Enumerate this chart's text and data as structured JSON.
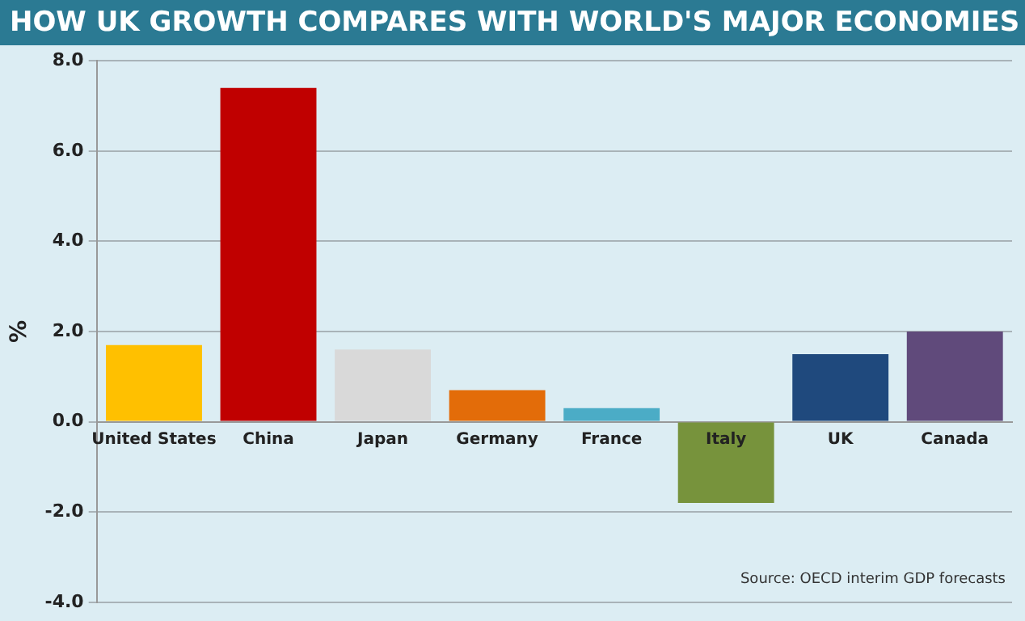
{
  "chart_data": {
    "type": "bar",
    "title": "HOW UK GROWTH COMPARES WITH WORLD'S MAJOR ECONOMIES",
    "ylabel": "%",
    "categories": [
      "United States",
      "China",
      "Japan",
      "Germany",
      "France",
      "Italy",
      "UK",
      "Canada"
    ],
    "values": [
      1.7,
      7.4,
      1.6,
      0.7,
      0.3,
      -1.8,
      1.5,
      2.0
    ],
    "colors": [
      "#ffc000",
      "#c00000",
      "#d9d9d9",
      "#e36c09",
      "#4bacc6",
      "#77933c",
      "#1f497d",
      "#604a7b"
    ],
    "ylim": [
      -4,
      8
    ],
    "yticks": [
      {
        "value": -4,
        "label": "-4.0"
      },
      {
        "value": -2,
        "label": "-2.0"
      },
      {
        "value": 0,
        "label": "0.0"
      },
      {
        "value": 2,
        "label": "2.0"
      },
      {
        "value": 4,
        "label": "4.0"
      },
      {
        "value": 6,
        "label": "6.0"
      },
      {
        "value": 8,
        "label": "8.0"
      }
    ],
    "grid": "y",
    "legend": false,
    "annotations": [
      "Source: OECD interim GDP forecasts"
    ]
  }
}
